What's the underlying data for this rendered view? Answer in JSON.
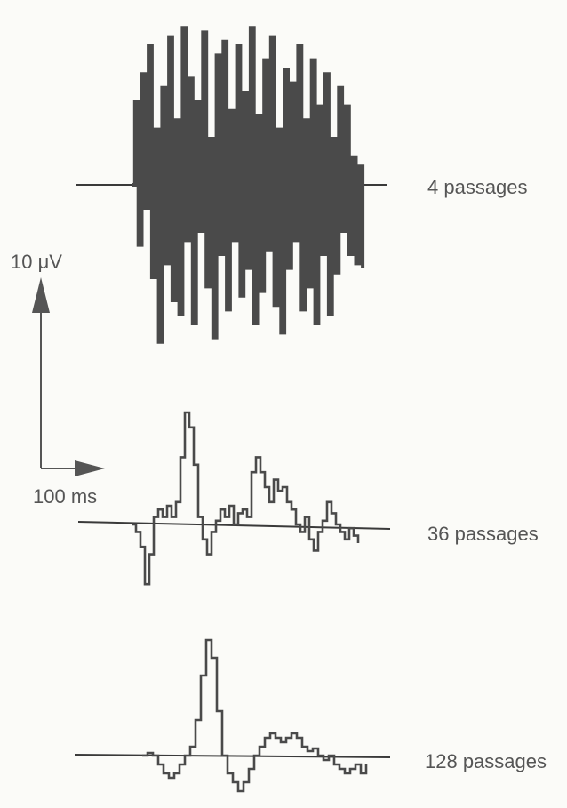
{
  "chart_data": {
    "type": "line",
    "title": "",
    "colors": {
      "trace": "#4a4a4a",
      "baseline": "#3a3a3a",
      "text": "#555555",
      "background": "#fbfbf8"
    },
    "scale_bar": {
      "vertical_label": "10 μV",
      "vertical_value_uV": 10,
      "horizontal_label": "100 ms",
      "horizontal_value_ms": 100
    },
    "series": [
      {
        "name": "4 passages",
        "time_range_ms": [
          0,
          430
        ],
        "points": [
          [
            0,
            0
          ],
          [
            5,
            18
          ],
          [
            10,
            -13
          ],
          [
            15,
            24
          ],
          [
            20,
            -5
          ],
          [
            25,
            30
          ],
          [
            30,
            -20
          ],
          [
            35,
            12
          ],
          [
            40,
            -34
          ],
          [
            45,
            21
          ],
          [
            50,
            -17
          ],
          [
            55,
            32
          ],
          [
            60,
            -25
          ],
          [
            65,
            14
          ],
          [
            70,
            -28
          ],
          [
            75,
            34
          ],
          [
            80,
            -12
          ],
          [
            85,
            23
          ],
          [
            90,
            -30
          ],
          [
            95,
            18
          ],
          [
            100,
            -10
          ],
          [
            105,
            33
          ],
          [
            110,
            -22
          ],
          [
            115,
            10
          ],
          [
            120,
            -33
          ],
          [
            125,
            28
          ],
          [
            130,
            -15
          ],
          [
            135,
            31
          ],
          [
            140,
            -27
          ],
          [
            145,
            16
          ],
          [
            150,
            -12
          ],
          [
            155,
            30
          ],
          [
            160,
            -24
          ],
          [
            165,
            20
          ],
          [
            170,
            -18
          ],
          [
            175,
            34
          ],
          [
            180,
            -30
          ],
          [
            185,
            15
          ],
          [
            190,
            -23
          ],
          [
            195,
            27
          ],
          [
            200,
            -14
          ],
          [
            205,
            32
          ],
          [
            210,
            -26
          ],
          [
            215,
            12
          ],
          [
            220,
            -32
          ],
          [
            225,
            25
          ],
          [
            230,
            -18
          ],
          [
            235,
            22
          ],
          [
            240,
            -12
          ],
          [
            245,
            30
          ],
          [
            250,
            -27
          ],
          [
            255,
            14
          ],
          [
            260,
            -22
          ],
          [
            265,
            27
          ],
          [
            270,
            -30
          ],
          [
            275,
            17
          ],
          [
            280,
            -15
          ],
          [
            285,
            24
          ],
          [
            290,
            -28
          ],
          [
            295,
            10
          ],
          [
            300,
            -19
          ],
          [
            305,
            21
          ],
          [
            310,
            -10
          ],
          [
            315,
            17
          ],
          [
            320,
            -15
          ],
          [
            325,
            6
          ],
          [
            330,
            -17
          ],
          [
            335,
            4
          ],
          [
            340,
            -18
          ]
        ]
      },
      {
        "name": "36 passages",
        "time_range_ms": [
          0,
          430
        ],
        "points": [
          [
            0,
            0
          ],
          [
            5,
            -1
          ],
          [
            10,
            -3
          ],
          [
            15,
            -8
          ],
          [
            20,
            -4
          ],
          [
            25,
            1
          ],
          [
            30,
            2
          ],
          [
            35,
            1
          ],
          [
            40,
            2.5
          ],
          [
            45,
            1
          ],
          [
            50,
            3
          ],
          [
            55,
            9
          ],
          [
            60,
            15
          ],
          [
            65,
            13
          ],
          [
            70,
            8
          ],
          [
            75,
            1
          ],
          [
            80,
            -2
          ],
          [
            85,
            -4
          ],
          [
            90,
            -1
          ],
          [
            95,
            0.5
          ],
          [
            100,
            2
          ],
          [
            105,
            1
          ],
          [
            110,
            2.5
          ],
          [
            115,
            0
          ],
          [
            120,
            1.5
          ],
          [
            125,
            2
          ],
          [
            130,
            1
          ],
          [
            135,
            7
          ],
          [
            140,
            9
          ],
          [
            145,
            7
          ],
          [
            150,
            5
          ],
          [
            155,
            3
          ],
          [
            160,
            6
          ],
          [
            165,
            4.5
          ],
          [
            170,
            5
          ],
          [
            175,
            3
          ],
          [
            180,
            2
          ],
          [
            185,
            0
          ],
          [
            190,
            -1
          ],
          [
            195,
            1
          ],
          [
            200,
            -2
          ],
          [
            205,
            -3.5
          ],
          [
            210,
            -1
          ],
          [
            215,
            0.5
          ],
          [
            220,
            3
          ],
          [
            225,
            1.5
          ],
          [
            230,
            0
          ],
          [
            235,
            -1
          ],
          [
            240,
            -2
          ],
          [
            245,
            -0.5
          ],
          [
            250,
            -1.5
          ],
          [
            255,
            -2.5
          ]
        ]
      },
      {
        "name": "128 passages",
        "time_range_ms": [
          0,
          430
        ],
        "points": [
          [
            0,
            0
          ],
          [
            5,
            0.3
          ],
          [
            10,
            0
          ],
          [
            15,
            -1
          ],
          [
            20,
            -2
          ],
          [
            25,
            -2.5
          ],
          [
            30,
            -2
          ],
          [
            35,
            -1
          ],
          [
            40,
            0
          ],
          [
            45,
            1
          ],
          [
            50,
            4
          ],
          [
            55,
            9
          ],
          [
            60,
            13
          ],
          [
            65,
            11
          ],
          [
            70,
            5
          ],
          [
            75,
            0
          ],
          [
            80,
            -2
          ],
          [
            85,
            -3
          ],
          [
            90,
            -4
          ],
          [
            95,
            -3
          ],
          [
            100,
            -1.5
          ],
          [
            105,
            0
          ],
          [
            110,
            1
          ],
          [
            115,
            2
          ],
          [
            120,
            2.5
          ],
          [
            125,
            2
          ],
          [
            130,
            1.5
          ],
          [
            135,
            2
          ],
          [
            140,
            2.5
          ],
          [
            145,
            2
          ],
          [
            150,
            1
          ],
          [
            155,
            0.5
          ],
          [
            160,
            0.8
          ],
          [
            165,
            0
          ],
          [
            170,
            -0.5
          ],
          [
            175,
            0
          ],
          [
            180,
            -1
          ],
          [
            185,
            -1.5
          ],
          [
            190,
            -2
          ],
          [
            195,
            -1.5
          ],
          [
            200,
            -1
          ],
          [
            205,
            -2
          ],
          [
            210,
            -1
          ]
        ]
      }
    ]
  }
}
